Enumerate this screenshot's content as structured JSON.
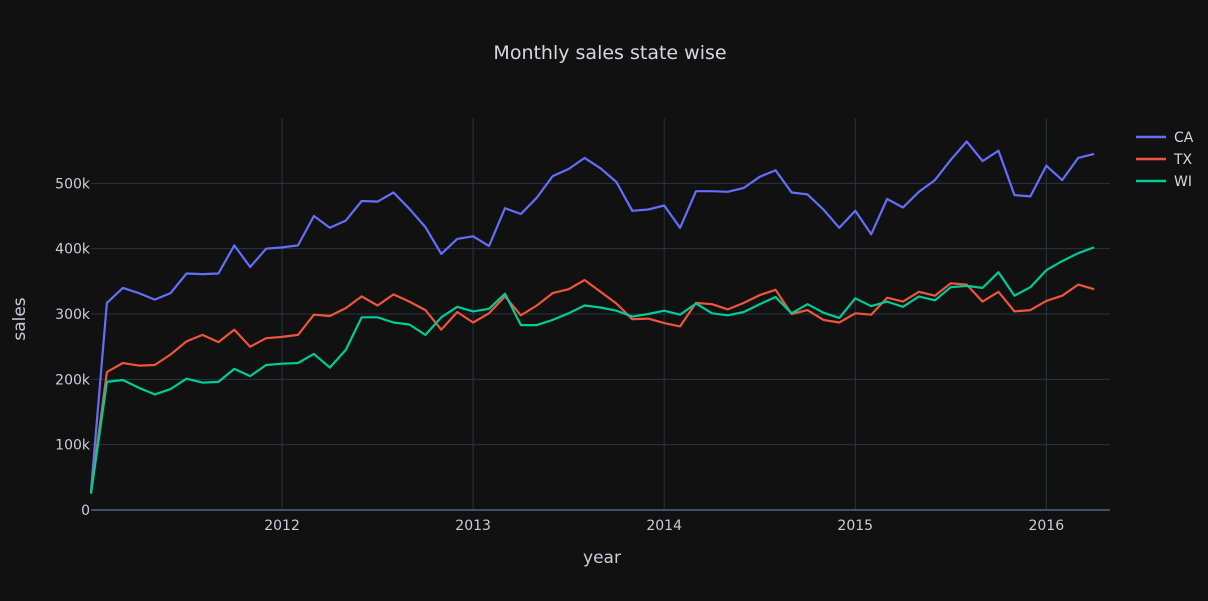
{
  "chart_data": {
    "type": "line",
    "title": "Monthly sales state wise",
    "xlabel": "year",
    "ylabel": "sales",
    "x_start": "2011-01",
    "x_range": [
      "2011-01",
      "2016-05"
    ],
    "ylim": [
      0,
      600000
    ],
    "x_ticks": [
      {
        "value": "2012-01",
        "label": "2012"
      },
      {
        "value": "2013-01",
        "label": "2013"
      },
      {
        "value": "2014-01",
        "label": "2014"
      },
      {
        "value": "2015-01",
        "label": "2015"
      },
      {
        "value": "2016-01",
        "label": "2016"
      }
    ],
    "y_ticks": [
      {
        "value": 0,
        "label": "0"
      },
      {
        "value": 100000,
        "label": "100k"
      },
      {
        "value": 200000,
        "label": "200k"
      },
      {
        "value": 300000,
        "label": "300k"
      },
      {
        "value": 400000,
        "label": "400k"
      },
      {
        "value": 500000,
        "label": "500k"
      }
    ],
    "grid": true,
    "legend_position": "top-right",
    "series": [
      {
        "name": "CA",
        "color": "#636efa",
        "values": [
          30000,
          317000,
          340000,
          332000,
          322000,
          332000,
          362000,
          361000,
          362000,
          405000,
          372000,
          400000,
          402000,
          405000,
          450000,
          432000,
          443000,
          473000,
          472000,
          486000,
          461000,
          433000,
          392000,
          415000,
          419000,
          404000,
          462000,
          453000,
          478000,
          511000,
          522000,
          539000,
          523000,
          502000,
          458000,
          460000,
          466000,
          432000,
          488000,
          488000,
          487000,
          493000,
          510000,
          520000,
          486000,
          483000,
          460000,
          432000,
          458000,
          422000,
          476000,
          463000,
          487000,
          505000,
          536000,
          564000,
          534000,
          550000,
          482000,
          480000,
          527000,
          505000,
          539000,
          545000
        ]
      },
      {
        "name": "TX",
        "color": "#ef553b",
        "values": [
          28000,
          211000,
          225000,
          221000,
          222000,
          238000,
          258000,
          268000,
          257000,
          276000,
          250000,
          263000,
          265000,
          268000,
          299000,
          297000,
          309000,
          327000,
          313000,
          330000,
          319000,
          306000,
          276000,
          303000,
          287000,
          301000,
          327000,
          298000,
          313000,
          332000,
          338000,
          352000,
          334000,
          316000,
          292000,
          293000,
          286000,
          281000,
          317000,
          315000,
          307000,
          317000,
          329000,
          337000,
          300000,
          306000,
          291000,
          287000,
          301000,
          299000,
          325000,
          319000,
          334000,
          328000,
          347000,
          345000,
          319000,
          334000,
          304000,
          306000,
          320000,
          328000,
          345000,
          338000
        ]
      },
      {
        "name": "WI",
        "color": "#00cc96",
        "values": [
          25000,
          196000,
          199000,
          187000,
          177000,
          185000,
          201000,
          195000,
          196000,
          216000,
          205000,
          222000,
          224000,
          225000,
          239000,
          218000,
          245000,
          295000,
          295000,
          287000,
          284000,
          268000,
          295000,
          311000,
          304000,
          308000,
          331000,
          283000,
          283000,
          291000,
          301000,
          313000,
          310000,
          305000,
          296000,
          300000,
          305000,
          299000,
          316000,
          301000,
          298000,
          303000,
          315000,
          326000,
          301000,
          315000,
          302000,
          294000,
          324000,
          312000,
          319000,
          311000,
          327000,
          321000,
          341000,
          343000,
          340000,
          364000,
          328000,
          341000,
          367000,
          381000,
          393000,
          402000
        ]
      }
    ]
  }
}
